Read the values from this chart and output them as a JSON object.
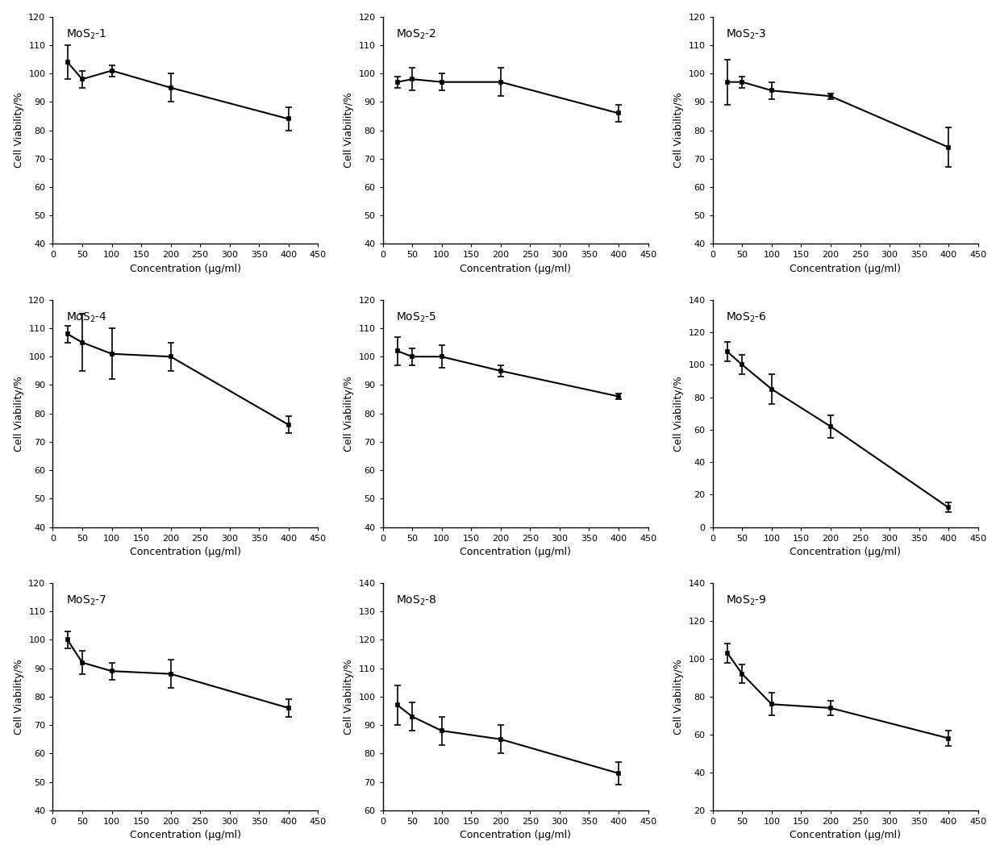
{
  "subplots": [
    {
      "label": "MoS$_2$-1",
      "x": [
        25,
        50,
        100,
        200,
        400
      ],
      "y": [
        104,
        98,
        101,
        95,
        84
      ],
      "yerr": [
        6,
        3,
        2,
        5,
        4
      ],
      "ylim": [
        40,
        120
      ],
      "yticks": [
        40,
        50,
        60,
        70,
        80,
        90,
        100,
        110,
        120
      ]
    },
    {
      "label": "MoS$_2$-2",
      "x": [
        25,
        50,
        100,
        200,
        400
      ],
      "y": [
        97,
        98,
        97,
        97,
        86
      ],
      "yerr": [
        2,
        4,
        3,
        5,
        3
      ],
      "ylim": [
        40,
        120
      ],
      "yticks": [
        40,
        50,
        60,
        70,
        80,
        90,
        100,
        110,
        120
      ]
    },
    {
      "label": "MoS$_2$-3",
      "x": [
        25,
        50,
        100,
        200,
        400
      ],
      "y": [
        97,
        97,
        94,
        92,
        74
      ],
      "yerr": [
        8,
        2,
        3,
        1,
        7
      ],
      "ylim": [
        40,
        120
      ],
      "yticks": [
        40,
        50,
        60,
        70,
        80,
        90,
        100,
        110,
        120
      ]
    },
    {
      "label": "MoS$_2$-4",
      "x": [
        25,
        50,
        100,
        200,
        400
      ],
      "y": [
        108,
        105,
        101,
        100,
        76
      ],
      "yerr": [
        3,
        10,
        9,
        5,
        3
      ],
      "ylim": [
        40,
        120
      ],
      "yticks": [
        40,
        50,
        60,
        70,
        80,
        90,
        100,
        110,
        120
      ]
    },
    {
      "label": "MoS$_2$-5",
      "x": [
        25,
        50,
        100,
        200,
        400
      ],
      "y": [
        102,
        100,
        100,
        95,
        86
      ],
      "yerr": [
        5,
        3,
        4,
        2,
        1
      ],
      "ylim": [
        40,
        120
      ],
      "yticks": [
        40,
        50,
        60,
        70,
        80,
        90,
        100,
        110,
        120
      ]
    },
    {
      "label": "MoS$_2$-6",
      "x": [
        25,
        50,
        100,
        200,
        400
      ],
      "y": [
        108,
        100,
        85,
        62,
        12
      ],
      "yerr": [
        6,
        6,
        9,
        7,
        3
      ],
      "ylim": [
        0,
        140
      ],
      "yticks": [
        0,
        20,
        40,
        60,
        80,
        100,
        120,
        140
      ]
    },
    {
      "label": "MoS$_2$-7",
      "x": [
        25,
        50,
        100,
        200,
        400
      ],
      "y": [
        100,
        92,
        89,
        88,
        76
      ],
      "yerr": [
        3,
        4,
        3,
        5,
        3
      ],
      "ylim": [
        40,
        120
      ],
      "yticks": [
        40,
        50,
        60,
        70,
        80,
        90,
        100,
        110,
        120
      ]
    },
    {
      "label": "MoS$_2$-8",
      "x": [
        25,
        50,
        100,
        200,
        400
      ],
      "y": [
        97,
        93,
        88,
        85,
        73
      ],
      "yerr": [
        7,
        5,
        5,
        5,
        4
      ],
      "ylim": [
        60,
        140
      ],
      "yticks": [
        60,
        70,
        80,
        90,
        100,
        110,
        120,
        130,
        140
      ]
    },
    {
      "label": "MoS$_2$-9",
      "x": [
        25,
        50,
        100,
        200,
        400
      ],
      "y": [
        103,
        92,
        76,
        74,
        58
      ],
      "yerr": [
        5,
        5,
        6,
        4,
        4
      ],
      "ylim": [
        20,
        140
      ],
      "yticks": [
        20,
        40,
        60,
        80,
        100,
        120,
        140
      ]
    }
  ],
  "xlabel": "Concentration (μg/ml)",
  "ylabel": "Cell Viability/%",
  "xlim": [
    0,
    450
  ],
  "xticks": [
    0,
    50,
    100,
    150,
    200,
    250,
    300,
    350,
    400,
    450
  ]
}
